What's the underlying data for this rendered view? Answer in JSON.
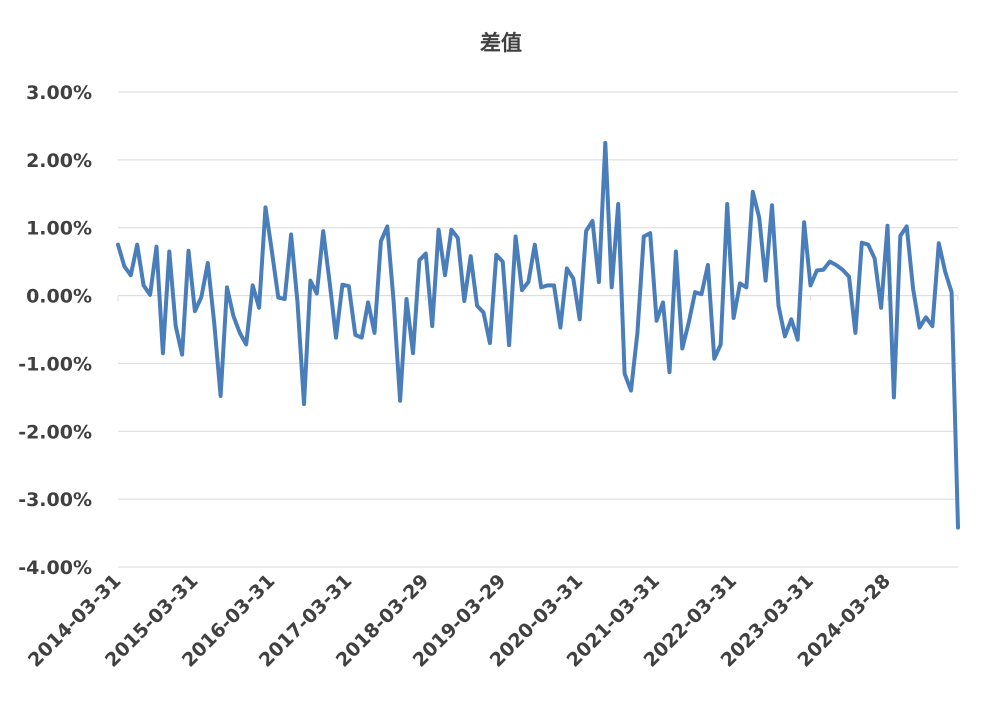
{
  "chart_data": {
    "type": "line",
    "title": "差值",
    "xlabel": "",
    "ylabel": "",
    "ylim": [
      -0.04,
      0.03
    ],
    "yticks": [
      "3.00%",
      "2.00%",
      "1.00%",
      "0.00%",
      "-1.00%",
      "-2.00%",
      "-3.00%",
      "-4.00%"
    ],
    "ytick_values": [
      0.03,
      0.02,
      0.01,
      0.0,
      -0.01,
      -0.02,
      -0.03,
      -0.04
    ],
    "xticks": [
      "2014-03-31",
      "2015-03-31",
      "2016-03-31",
      "2017-03-31",
      "2018-03-29",
      "2019-03-29",
      "2020-03-31",
      "2021-03-31",
      "2022-03-31",
      "2023-03-31",
      "2024-03-28"
    ],
    "xtick_index": [
      0,
      12,
      24,
      36,
      48,
      60,
      72,
      84,
      96,
      108,
      120
    ],
    "grid": true,
    "legend": "none",
    "color": "#4a7ebb",
    "series": [
      {
        "values": [
          0.0075,
          0.0043,
          0.003,
          0.0075,
          0.0015,
          0.0001,
          0.0072,
          -0.0085,
          0.0065,
          -0.0045,
          -0.0087,
          0.0066,
          -0.0023,
          -0.0002,
          0.0048,
          -0.004,
          -0.0148,
          0.0012,
          -0.003,
          -0.0055,
          -0.0072,
          0.0015,
          -0.0018,
          0.013,
          0.0065,
          -0.0003,
          -0.0005,
          0.009,
          -0.001,
          -0.016,
          0.0022,
          0.0003,
          0.0095,
          0.002,
          -0.0062,
          0.0016,
          0.0014,
          -0.0058,
          -0.0062,
          -0.001,
          -0.0055,
          0.008,
          0.0102,
          -0.001,
          -0.0155,
          -0.0005,
          -0.0085,
          0.0052,
          0.0062,
          -0.0045,
          0.0097,
          0.003,
          0.0097,
          0.0085,
          -0.0008,
          0.0058,
          -0.0015,
          -0.0025,
          -0.007,
          0.006,
          0.005,
          -0.0073,
          0.0087,
          0.0008,
          0.002,
          0.0075,
          0.0012,
          0.0015,
          0.0015,
          -0.0047,
          0.004,
          0.0025,
          -0.0035,
          0.0095,
          0.011,
          0.002,
          0.0225,
          0.0012,
          0.0135,
          -0.0115,
          -0.014,
          -0.0055,
          0.0087,
          0.0092,
          -0.0037,
          -0.001,
          -0.0113,
          0.0065,
          -0.0078,
          -0.004,
          0.0005,
          0.0002,
          0.0045,
          -0.0093,
          -0.0072,
          0.0135,
          -0.0033,
          0.0018,
          0.0012,
          0.0153,
          0.0115,
          0.0022,
          0.0133,
          -0.0015,
          -0.006,
          -0.0035,
          -0.0065,
          0.0108,
          0.0015,
          0.0037,
          0.0038,
          0.005,
          0.0045,
          0.0038,
          0.0028,
          -0.0055,
          0.0078,
          0.0075,
          0.0055,
          -0.0018,
          0.0103,
          -0.015,
          0.0088,
          0.0102,
          0.001,
          -0.0047,
          -0.0032,
          -0.0045,
          0.0077,
          0.0035,
          0.0005,
          -0.0342
        ]
      }
    ]
  }
}
